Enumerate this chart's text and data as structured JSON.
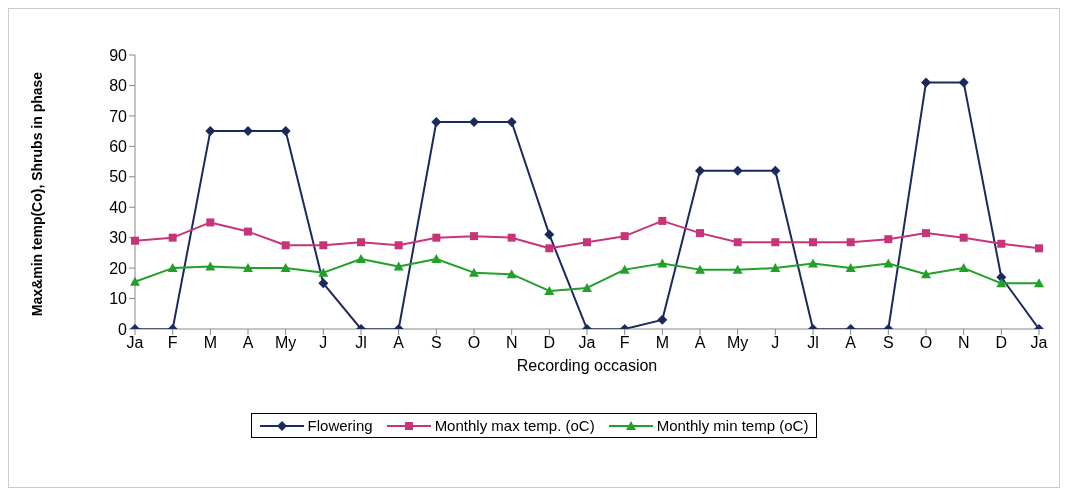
{
  "chart_data": {
    "type": "line",
    "xlabel": "Recording occasion",
    "ylabel": "Max&min temp(Co), Shrubs in phase",
    "categories": [
      "Ja",
      "F",
      "M",
      "A",
      "My",
      "J",
      "Jl",
      "A",
      "S",
      "O",
      "N",
      "D",
      "Ja",
      "F",
      "M",
      "A",
      "My",
      "J",
      "Jl",
      "A",
      "S",
      "O",
      "N",
      "D",
      "Ja"
    ],
    "series": [
      {
        "name": "Flowering",
        "color": "#1b2a5c",
        "marker": "diamond",
        "values": [
          0,
          0,
          65,
          65,
          65,
          15,
          0,
          0,
          68,
          68,
          68,
          31,
          0,
          0,
          3,
          52,
          52,
          52,
          0,
          0,
          0,
          81,
          81,
          17,
          0
        ]
      },
      {
        "name": "Monthly max temp. (oC)",
        "color": "#c8347a",
        "marker": "square",
        "values": [
          29,
          30,
          35,
          32,
          27.5,
          27.5,
          28.5,
          27.5,
          30,
          30.5,
          30,
          26.5,
          28.5,
          30.5,
          35.5,
          31.5,
          28.5,
          28.5,
          28.5,
          28.5,
          29.5,
          31.5,
          30,
          28,
          26.5
        ]
      },
      {
        "name": "Monthly min temp (oC)",
        "color": "#22a02a",
        "marker": "triangle",
        "values": [
          15.5,
          20,
          20.5,
          20,
          20,
          18.5,
          23,
          20.5,
          23,
          18.5,
          18,
          12.5,
          13.5,
          19.5,
          21.5,
          19.5,
          19.5,
          20,
          21.5,
          20,
          21.5,
          18,
          20,
          15,
          15
        ]
      }
    ],
    "ylim": [
      0,
      90
    ],
    "yticks": [
      0,
      10,
      20,
      30,
      40,
      50,
      60,
      70,
      80,
      90
    ],
    "grid": false,
    "legend": "bottom"
  }
}
